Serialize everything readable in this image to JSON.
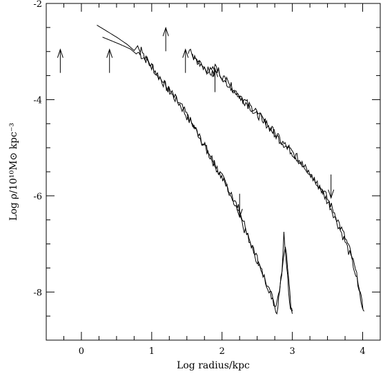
{
  "chart_data": {
    "type": "line",
    "title": "",
    "xlabel": "Log radius/kpc",
    "ylabel": "Log ρ/10¹⁰M⊙ kpc⁻³",
    "xlim": [
      -0.5,
      4.25
    ],
    "ylim": [
      -9,
      -2
    ],
    "x_ticks": [
      0,
      1,
      2,
      3,
      4
    ],
    "y_ticks": [
      -2,
      -4,
      -6,
      -8
    ],
    "x_tick_labels": [
      "0",
      "1",
      "2",
      "3",
      "4"
    ],
    "y_tick_labels": [
      "-2",
      "-4",
      "-6",
      "-8"
    ],
    "grid": false,
    "series": [
      {
        "group": "left",
        "points": [
          [
            0.22,
            -2.45
          ],
          [
            0.5,
            -2.7
          ],
          [
            0.65,
            -2.85
          ],
          [
            0.75,
            -2.98
          ],
          [
            0.8,
            -2.88
          ],
          [
            0.85,
            -3.08
          ],
          [
            0.95,
            -3.2
          ],
          [
            1.05,
            -3.4
          ],
          [
            1.15,
            -3.62
          ],
          [
            1.3,
            -3.92
          ],
          [
            1.4,
            -4.1
          ],
          [
            1.5,
            -4.35
          ],
          [
            1.6,
            -4.55
          ],
          [
            1.75,
            -4.95
          ],
          [
            1.9,
            -5.35
          ],
          [
            2.05,
            -5.75
          ],
          [
            2.15,
            -6.05
          ],
          [
            2.25,
            -6.3
          ],
          [
            2.3,
            -6.65
          ],
          [
            2.4,
            -6.95
          ],
          [
            2.5,
            -7.35
          ],
          [
            2.6,
            -7.7
          ],
          [
            2.7,
            -8.05
          ],
          [
            2.75,
            -8.3
          ],
          [
            2.8,
            -8.05
          ],
          [
            2.85,
            -7.6
          ],
          [
            2.88,
            -6.8
          ],
          [
            2.92,
            -7.4
          ],
          [
            2.96,
            -8.2
          ],
          [
            3.0,
            -8.45
          ]
        ]
      },
      {
        "group": "left",
        "points": [
          [
            0.3,
            -2.7
          ],
          [
            0.55,
            -2.85
          ],
          [
            0.7,
            -2.95
          ],
          [
            0.78,
            -3.05
          ],
          [
            0.85,
            -2.95
          ],
          [
            0.9,
            -3.15
          ],
          [
            1.0,
            -3.3
          ],
          [
            1.1,
            -3.5
          ],
          [
            1.2,
            -3.72
          ],
          [
            1.35,
            -4.0
          ],
          [
            1.45,
            -4.2
          ],
          [
            1.55,
            -4.45
          ],
          [
            1.65,
            -4.7
          ],
          [
            1.8,
            -5.1
          ],
          [
            1.95,
            -5.5
          ],
          [
            2.1,
            -5.9
          ],
          [
            2.2,
            -6.2
          ],
          [
            2.3,
            -6.45
          ],
          [
            2.35,
            -6.8
          ],
          [
            2.45,
            -7.1
          ],
          [
            2.55,
            -7.5
          ],
          [
            2.65,
            -7.9
          ],
          [
            2.72,
            -8.2
          ],
          [
            2.78,
            -8.4
          ],
          [
            2.82,
            -8.0
          ],
          [
            2.87,
            -7.3
          ],
          [
            2.9,
            -7.0
          ],
          [
            2.95,
            -7.8
          ],
          [
            2.98,
            -8.3
          ],
          [
            3.0,
            -8.4
          ]
        ]
      },
      {
        "group": "right",
        "points": [
          [
            1.52,
            -2.98
          ],
          [
            1.65,
            -3.2
          ],
          [
            1.75,
            -3.35
          ],
          [
            1.85,
            -3.42
          ],
          [
            1.92,
            -3.3
          ],
          [
            1.98,
            -3.5
          ],
          [
            2.05,
            -3.6
          ],
          [
            2.2,
            -3.85
          ],
          [
            2.4,
            -4.15
          ],
          [
            2.6,
            -4.45
          ],
          [
            2.8,
            -4.8
          ],
          [
            3.0,
            -5.1
          ],
          [
            3.2,
            -5.45
          ],
          [
            3.4,
            -5.85
          ],
          [
            3.55,
            -6.25
          ],
          [
            3.65,
            -6.6
          ],
          [
            3.75,
            -6.95
          ],
          [
            3.85,
            -7.35
          ],
          [
            3.92,
            -7.75
          ],
          [
            3.97,
            -8.15
          ],
          [
            4.0,
            -8.35
          ]
        ]
      },
      {
        "group": "right",
        "points": [
          [
            1.58,
            -3.1
          ],
          [
            1.7,
            -3.25
          ],
          [
            1.8,
            -3.4
          ],
          [
            1.88,
            -3.48
          ],
          [
            1.95,
            -3.4
          ],
          [
            2.02,
            -3.55
          ],
          [
            2.1,
            -3.68
          ],
          [
            2.25,
            -3.92
          ],
          [
            2.45,
            -4.22
          ],
          [
            2.65,
            -4.52
          ],
          [
            2.85,
            -4.88
          ],
          [
            3.05,
            -5.18
          ],
          [
            3.25,
            -5.52
          ],
          [
            3.45,
            -5.92
          ],
          [
            3.6,
            -6.35
          ],
          [
            3.7,
            -6.7
          ],
          [
            3.8,
            -7.05
          ],
          [
            3.88,
            -7.45
          ],
          [
            3.95,
            -7.9
          ],
          [
            3.99,
            -8.25
          ],
          [
            4.02,
            -8.4
          ]
        ]
      }
    ],
    "annotations": [
      {
        "type": "arrow",
        "direction": "up",
        "x": -0.3,
        "y": -3.2
      },
      {
        "type": "arrow",
        "direction": "up",
        "x": 0.4,
        "y": -3.2
      },
      {
        "type": "arrow",
        "direction": "up",
        "x": 1.2,
        "y": -2.75
      },
      {
        "type": "arrow",
        "direction": "up",
        "x": 1.48,
        "y": -3.2
      },
      {
        "type": "arrow",
        "direction": "up",
        "x": 1.9,
        "y": -3.6
      },
      {
        "type": "arrow",
        "direction": "down",
        "x": 2.25,
        "y": -6.2
      },
      {
        "type": "arrow",
        "direction": "down",
        "x": 3.55,
        "y": -5.8
      }
    ]
  }
}
